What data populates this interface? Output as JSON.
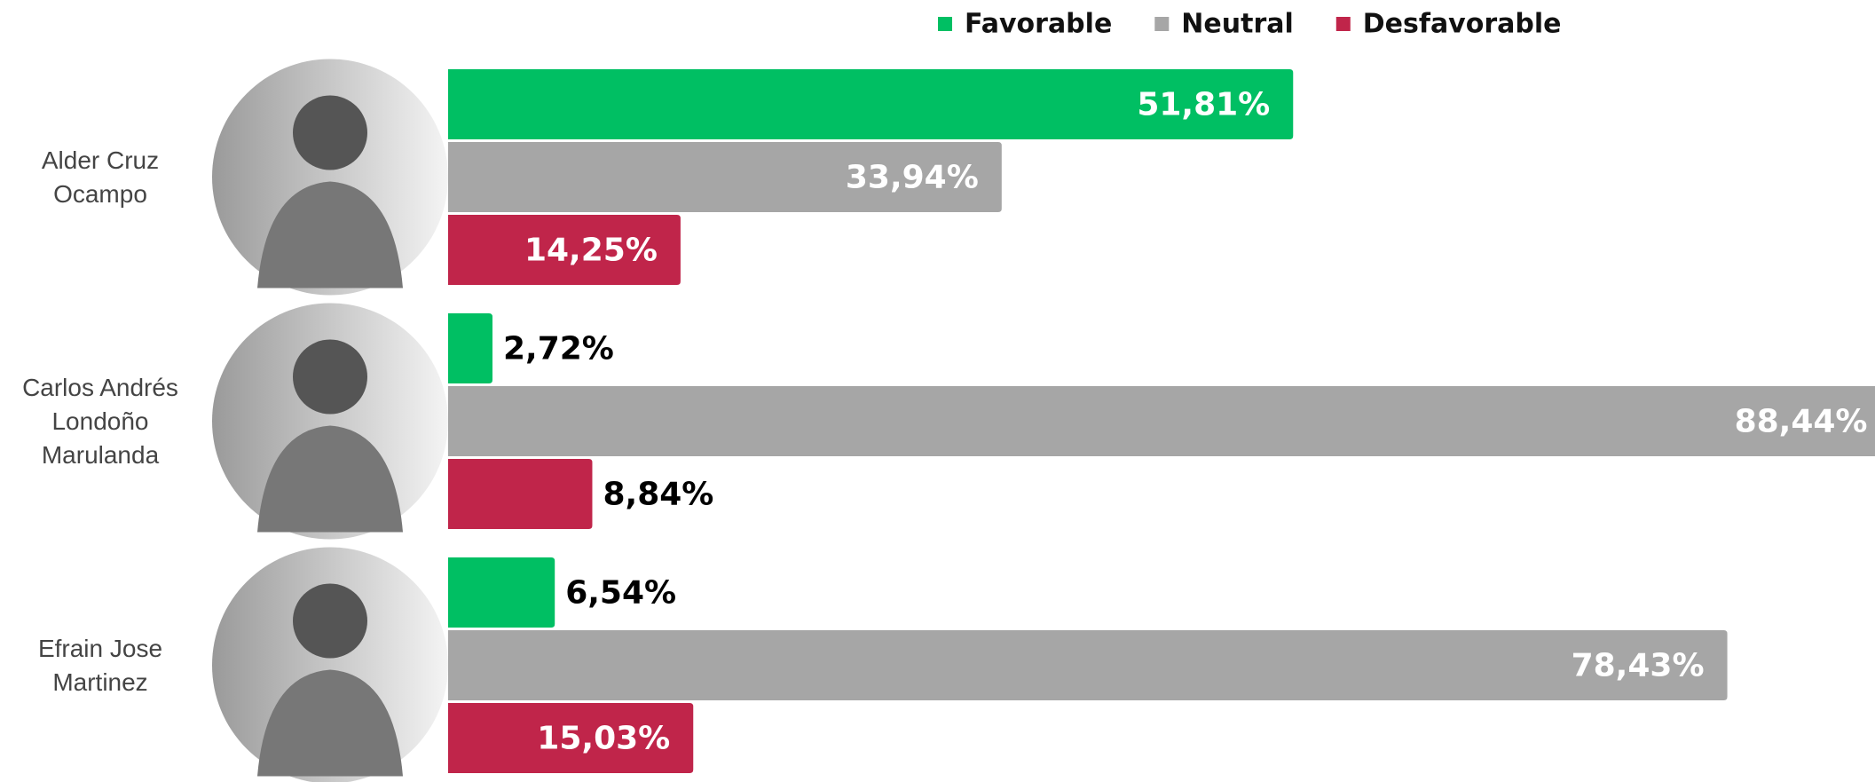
{
  "chart_data": {
    "type": "bar",
    "orientation": "horizontal",
    "categories": [
      "Alder Cruz Ocampo",
      "Carlos Andrés Londoño Marulanda",
      "Efrain Jose Martinez"
    ],
    "series": [
      {
        "name": "Favorable",
        "color": "#00bf63",
        "values": [
          51.81,
          2.72,
          6.54
        ],
        "value_labels": [
          "51,81%",
          "2,72%",
          "6,54%"
        ]
      },
      {
        "name": "Neutral",
        "color": "#a6a6a6",
        "values": [
          33.94,
          88.44,
          78.43
        ],
        "value_labels": [
          "33,94%",
          "88,44%",
          "78,43%"
        ]
      },
      {
        "name": "Desfavorable",
        "color": "#c0254a",
        "values": [
          14.25,
          8.84,
          15.03
        ],
        "value_labels": [
          "14,25%",
          "8,84%",
          "15,03%"
        ]
      }
    ],
    "legend": "top"
  }
}
